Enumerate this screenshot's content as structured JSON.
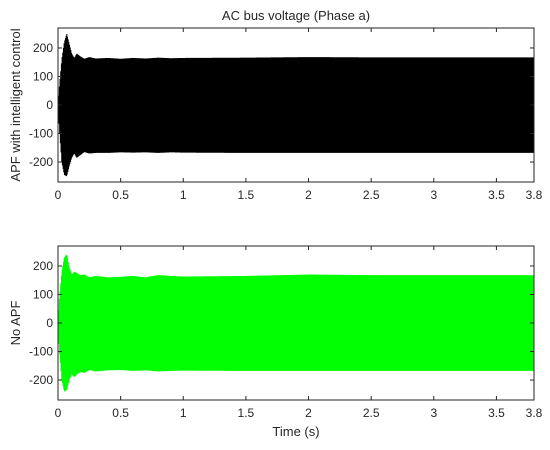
{
  "chart_data": [
    {
      "type": "line",
      "title": "AC bus voltage (Phase a)",
      "xlabel": "",
      "ylabel": "APF with intelligent control",
      "xlim": [
        0,
        3.8
      ],
      "ylim": [
        -270,
        270
      ],
      "xticks": [
        0,
        0.5,
        1,
        1.5,
        2,
        2.5,
        3,
        3.5,
        3.8
      ],
      "xtick_labels": [
        "0",
        "0.5",
        "1",
        "1.5",
        "2",
        "2.5",
        "3",
        "3.5",
        "3.8"
      ],
      "yticks": [
        200,
        100,
        0,
        -100,
        -200
      ],
      "ytick_labels": [
        "200",
        "100",
        "0",
        "-100",
        "-200"
      ],
      "color": "#000000",
      "envelope": {
        "t": [
          0,
          0.01,
          0.03,
          0.05,
          0.07,
          0.09,
          0.11,
          0.13,
          0.15,
          0.18,
          0.21,
          0.25,
          0.3,
          0.4,
          0.5,
          0.6,
          0.7,
          0.8,
          0.9,
          1.0,
          1.5,
          2.0,
          2.5,
          3.0,
          3.5,
          3.8
        ],
        "upper": [
          0,
          60,
          160,
          220,
          250,
          215,
          180,
          165,
          180,
          170,
          162,
          168,
          163,
          165,
          162,
          165,
          163,
          166,
          164,
          165,
          166,
          168,
          167,
          167,
          167,
          167
        ],
        "lower": [
          0,
          -80,
          -200,
          -245,
          -250,
          -215,
          -185,
          -170,
          -185,
          -175,
          -165,
          -170,
          -168,
          -168,
          -166,
          -167,
          -166,
          -168,
          -166,
          -167,
          -168,
          -168,
          -168,
          -168,
          -168,
          -168
        ]
      }
    },
    {
      "type": "line",
      "title": "",
      "xlabel": "Time (s)",
      "ylabel": "No APF",
      "xlim": [
        0,
        3.8
      ],
      "ylim": [
        -270,
        270
      ],
      "xticks": [
        0,
        0.5,
        1,
        1.5,
        2,
        2.5,
        3,
        3.5,
        3.8
      ],
      "xtick_labels": [
        "0",
        "0.5",
        "1",
        "1.5",
        "2",
        "2.5",
        "3",
        "3.5",
        "3.8"
      ],
      "yticks": [
        200,
        100,
        0,
        -100,
        -200
      ],
      "ytick_labels": [
        "200",
        "100",
        "0",
        "-100",
        "-200"
      ],
      "color": "#00ff00",
      "envelope": {
        "t": [
          0,
          0.01,
          0.03,
          0.05,
          0.07,
          0.09,
          0.11,
          0.13,
          0.15,
          0.18,
          0.21,
          0.25,
          0.3,
          0.4,
          0.5,
          0.6,
          0.7,
          0.8,
          0.9,
          1.0,
          1.5,
          2.0,
          2.5,
          3.0,
          3.5,
          3.8
        ],
        "upper": [
          0,
          80,
          180,
          230,
          240,
          195,
          170,
          180,
          175,
          168,
          170,
          160,
          165,
          160,
          162,
          165,
          160,
          168,
          165,
          163,
          165,
          170,
          168,
          168,
          168,
          168
        ],
        "lower": [
          0,
          -90,
          -200,
          -240,
          -235,
          -200,
          -180,
          -190,
          -180,
          -172,
          -175,
          -165,
          -170,
          -166,
          -165,
          -168,
          -166,
          -170,
          -168,
          -167,
          -168,
          -168,
          -168,
          -168,
          -168,
          -168
        ]
      }
    }
  ]
}
